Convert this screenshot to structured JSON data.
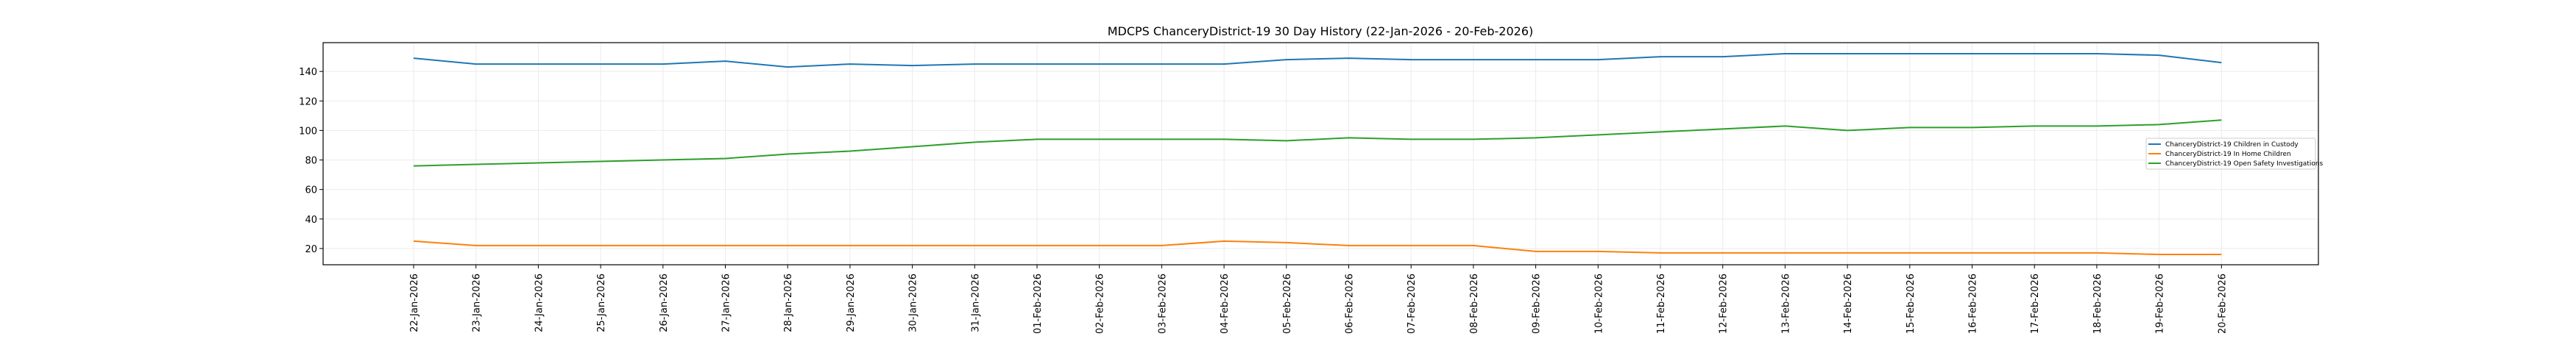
{
  "chart_data": {
    "type": "line",
    "title": "MDCPS ChanceryDistrict-19 30 Day History (22-Jan-2026 - 20-Feb-2026)",
    "xlabel": "",
    "ylabel": "",
    "ylim": [
      9,
      159.5
    ],
    "yticks": [
      20,
      40,
      60,
      80,
      100,
      120,
      140
    ],
    "grid": true,
    "legend_position": "center-right",
    "categories": [
      "22-Jan-2026",
      "23-Jan-2026",
      "24-Jan-2026",
      "25-Jan-2026",
      "26-Jan-2026",
      "27-Jan-2026",
      "28-Jan-2026",
      "29-Jan-2026",
      "30-Jan-2026",
      "31-Jan-2026",
      "01-Feb-2026",
      "02-Feb-2026",
      "03-Feb-2026",
      "04-Feb-2026",
      "05-Feb-2026",
      "06-Feb-2026",
      "07-Feb-2026",
      "08-Feb-2026",
      "09-Feb-2026",
      "10-Feb-2026",
      "11-Feb-2026",
      "12-Feb-2026",
      "13-Feb-2026",
      "14-Feb-2026",
      "15-Feb-2026",
      "16-Feb-2026",
      "17-Feb-2026",
      "18-Feb-2026",
      "19-Feb-2026",
      "20-Feb-2026"
    ],
    "series": [
      {
        "name": "ChanceryDistrict-19 Children in Custody",
        "color": "#1f77b4",
        "values": [
          149,
          145,
          145,
          145,
          145,
          147,
          143,
          145,
          144,
          145,
          145,
          145,
          145,
          145,
          148,
          149,
          148,
          148,
          148,
          148,
          150,
          150,
          152,
          152,
          152,
          152,
          152,
          152,
          151,
          146
        ]
      },
      {
        "name": "ChanceryDistrict-19 In Home Children",
        "color": "#ff7f0e",
        "values": [
          25,
          22,
          22,
          22,
          22,
          22,
          22,
          22,
          22,
          22,
          22,
          22,
          22,
          25,
          24,
          22,
          22,
          22,
          18,
          18,
          17,
          17,
          17,
          17,
          17,
          17,
          17,
          17,
          16,
          16
        ]
      },
      {
        "name": "ChanceryDistrict-19 Open Safety Investigations",
        "color": "#2ca02c",
        "values": [
          76,
          77,
          78,
          79,
          80,
          81,
          84,
          86,
          89,
          92,
          94,
          94,
          94,
          94,
          93,
          95,
          94,
          94,
          95,
          97,
          99,
          101,
          103,
          100,
          102,
          102,
          103,
          103,
          104,
          107
        ]
      }
    ]
  }
}
